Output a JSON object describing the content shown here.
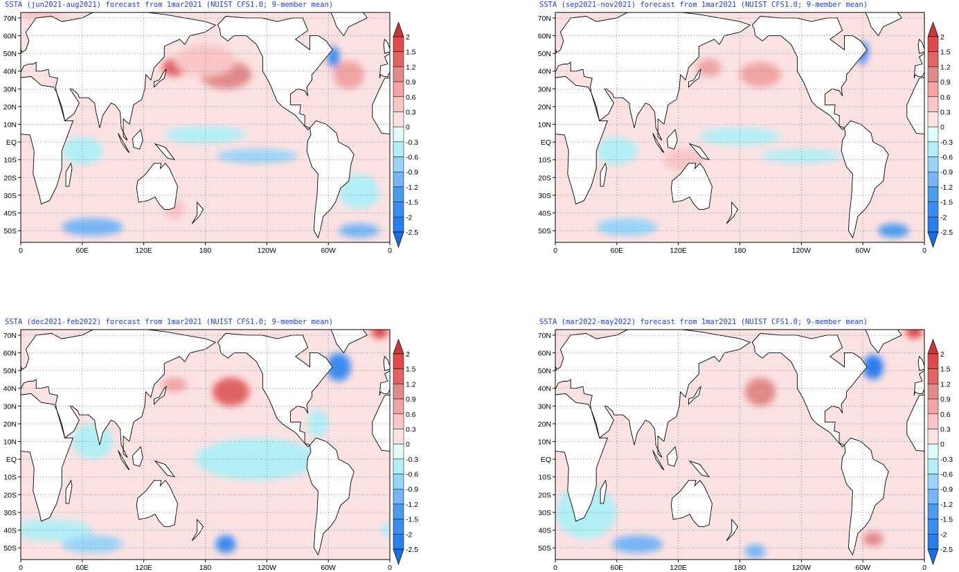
{
  "figure": {
    "lon_ticks": [
      "0",
      "60E",
      "120E",
      "180",
      "120W",
      "60W",
      "0"
    ],
    "lat_ticks": [
      "70N",
      "60N",
      "50N",
      "40N",
      "30N",
      "20N",
      "10N",
      "EQ",
      "10S",
      "20S",
      "30S",
      "40S",
      "50S"
    ],
    "lon_range": [
      0,
      360
    ],
    "lat_range": [
      -56.6,
      73.1
    ],
    "grid": "dotted",
    "colorbar": {
      "labels": [
        "2",
        "1.5",
        "1.2",
        "0.9",
        "0.6",
        "0.3",
        "0",
        "-0.3",
        "-0.6",
        "-0.9",
        "-1.2",
        "-1.5",
        "-2",
        "-2.5"
      ],
      "levels": [
        2,
        1.5,
        1.2,
        0.9,
        0.6,
        0.3,
        0,
        -0.3,
        -0.6,
        -0.9,
        -1.2,
        -1.5,
        -2,
        -2.5
      ],
      "colors": [
        "#c83838",
        "#e04a4a",
        "#e06464",
        "#e08a8a",
        "#f0a4a4",
        "#f8c6c6",
        "#fde2e2",
        "#e0fcff",
        "#b2eef6",
        "#98d4f8",
        "#76b6f6",
        "#4c9cee",
        "#3a8cf0",
        "#2a7ef0",
        "#1a6ee6"
      ],
      "placement": "right"
    },
    "ocean_base_value": 0.1
  },
  "chart_data": [
    {
      "type": "heatmap",
      "title": "SSTA (jun2021-aug2021) forecast from 1mar2021 (NUIST CFS1.0; 9-member mean)",
      "anomaly_features": [
        [
          200,
          38,
          25,
          8,
          1.0
        ],
        [
          150,
          42,
          12,
          5,
          1.3
        ],
        [
          180,
          46,
          30,
          9,
          0.6
        ],
        [
          305,
          48,
          6,
          6,
          -1.5
        ],
        [
          320,
          38,
          15,
          8,
          0.7
        ],
        [
          230,
          -8,
          40,
          4,
          -0.6
        ],
        [
          180,
          4,
          40,
          5,
          -0.3
        ],
        [
          60,
          -5,
          20,
          8,
          -0.3
        ],
        [
          70,
          -48,
          30,
          5,
          -0.9
        ],
        [
          330,
          -50,
          20,
          4,
          -1.0
        ],
        [
          20,
          72,
          20,
          4,
          0.5
        ],
        [
          150,
          -38,
          10,
          6,
          0.6
        ],
        [
          220,
          -35,
          40,
          8,
          0.3
        ],
        [
          330,
          -28,
          20,
          10,
          -0.3
        ]
      ]
    },
    {
      "type": "heatmap",
      "title": "SSTA (sep2021-nov2021) forecast from 1mar2021 (NUIST CFS1.0; 9-member mean)",
      "anomaly_features": [
        [
          200,
          38,
          20,
          7,
          0.9
        ],
        [
          150,
          42,
          12,
          5,
          0.8
        ],
        [
          300,
          50,
          6,
          7,
          -1.5
        ],
        [
          240,
          -8,
          40,
          4,
          -0.5
        ],
        [
          180,
          3,
          40,
          5,
          -0.3
        ],
        [
          70,
          -48,
          30,
          5,
          -0.6
        ],
        [
          330,
          -50,
          15,
          4,
          -1.2
        ],
        [
          125,
          -10,
          20,
          6,
          0.5
        ],
        [
          320,
          40,
          20,
          10,
          0.3
        ],
        [
          60,
          -5,
          20,
          8,
          -0.3
        ]
      ]
    },
    {
      "type": "heatmap",
      "title": "SSTA (dec2021-feb2022) forecast from 1mar2021 (NUIST CFS1.0; 9-member mean)",
      "anomaly_features": [
        [
          205,
          38,
          18,
          8,
          1.3
        ],
        [
          150,
          42,
          12,
          4,
          0.9
        ],
        [
          310,
          52,
          12,
          8,
          -1.8
        ],
        [
          350,
          72,
          8,
          4,
          1.8
        ],
        [
          200,
          -48,
          10,
          5,
          -1.5
        ],
        [
          70,
          -48,
          30,
          5,
          -0.7
        ],
        [
          230,
          0,
          60,
          12,
          -0.3
        ],
        [
          30,
          -40,
          40,
          6,
          -0.3
        ],
        [
          290,
          20,
          10,
          8,
          -0.3
        ],
        [
          70,
          10,
          20,
          10,
          -0.3
        ]
      ]
    },
    {
      "type": "heatmap",
      "title": "SSTA (mar2022-may2022) forecast from 1mar2021 (NUIST CFS1.0; 9-member mean)",
      "anomaly_features": [
        [
          200,
          38,
          15,
          8,
          1.1
        ],
        [
          310,
          52,
          10,
          7,
          -2.0
        ],
        [
          350,
          72,
          8,
          4,
          1.8
        ],
        [
          80,
          -48,
          25,
          5,
          -1.0
        ],
        [
          195,
          -52,
          10,
          4,
          -0.9
        ],
        [
          310,
          -45,
          10,
          4,
          1.0
        ],
        [
          240,
          -10,
          60,
          20,
          0.3
        ],
        [
          30,
          -30,
          30,
          15,
          -0.3
        ],
        [
          140,
          60,
          10,
          6,
          -0.3
        ]
      ]
    }
  ]
}
